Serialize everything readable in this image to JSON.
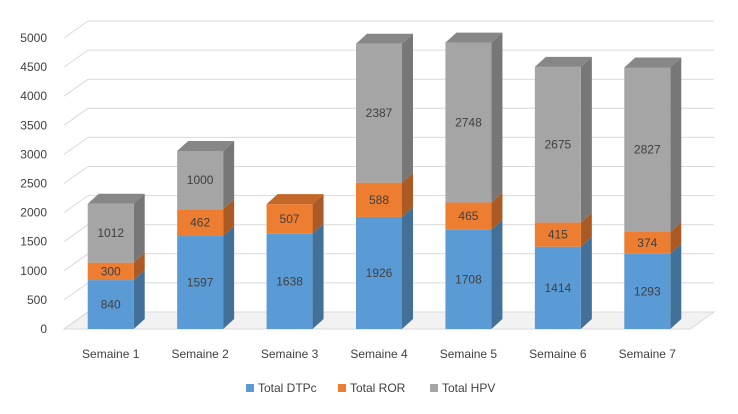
{
  "chart_data": {
    "type": "bar",
    "stacked": true,
    "three_d": true,
    "title": "",
    "xlabel": "",
    "ylabel": "",
    "categories": [
      "Semaine 1",
      "Semaine 2",
      "Semaine 3",
      "Semaine 4",
      "Semaine 5",
      "Semaine 6",
      "Semaine 7"
    ],
    "series": [
      {
        "name": "Total DTPc",
        "color": "#5b9bd5",
        "values": [
          840,
          1597,
          1638,
          1926,
          1708,
          1414,
          1293
        ]
      },
      {
        "name": "Total ROR",
        "color": "#ed7d31",
        "values": [
          300,
          462,
          507,
          588,
          465,
          415,
          374
        ]
      },
      {
        "name": "Total HPV",
        "color": "#a5a5a5",
        "values": [
          1012,
          1000,
          null,
          2387,
          2748,
          2675,
          2827
        ]
      }
    ],
    "ylim": [
      0,
      5000
    ],
    "yticks": [
      0,
      500,
      1000,
      1500,
      2000,
      2500,
      3000,
      3500,
      4000,
      4500,
      5000
    ],
    "grid": true,
    "legend_position": "bottom"
  }
}
